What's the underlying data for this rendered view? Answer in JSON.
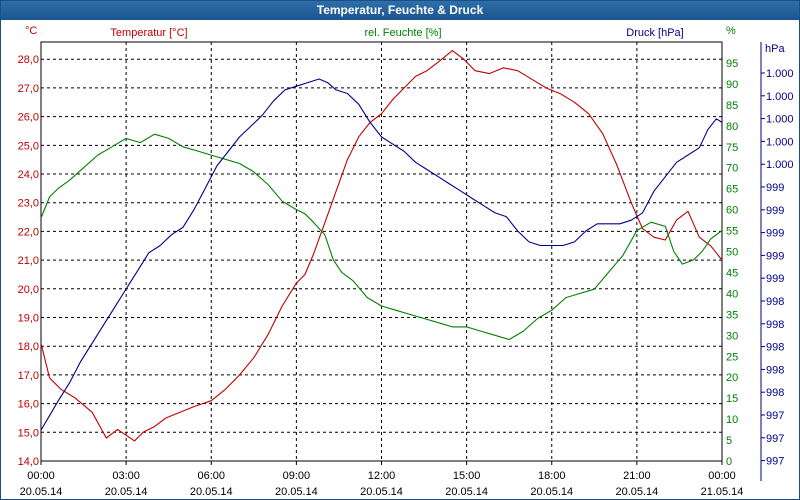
{
  "window": {
    "title": "Temperatur, Feuchte & Druck"
  },
  "chart_data": {
    "type": "line",
    "title": "Temperatur, Feuchte & Druck",
    "grid": true,
    "x_tick_labels": [
      [
        "00:00",
        "20.05.14"
      ],
      [
        "03:00",
        "20.05.14"
      ],
      [
        "06:00",
        "20.05.14"
      ],
      [
        "09:00",
        "20.05.14"
      ],
      [
        "12:00",
        "20.05.14"
      ],
      [
        "15:00",
        "20.05.14"
      ],
      [
        "18:00",
        "20.05.14"
      ],
      [
        "21:00",
        "20.05.14"
      ],
      [
        "00:00",
        "21.05.14"
      ]
    ],
    "xlim": [
      0,
      24
    ],
    "axes": {
      "temperature": {
        "label": "Temperatur [°C]",
        "unit": "°C",
        "color": "#c00000",
        "ylim": [
          14.0,
          28.6
        ],
        "ticks": [
          "14,0",
          "15,0",
          "16,0",
          "17,0",
          "18,0",
          "19,0",
          "20,0",
          "21,0",
          "22,0",
          "23,0",
          "24,0",
          "25,0",
          "26,0",
          "27,0",
          "28,0"
        ]
      },
      "humidity": {
        "label": "rel. Feuchte [%]",
        "unit": "%",
        "color": "#008000",
        "ylim": [
          0,
          100
        ],
        "ticks": [
          "0",
          "5",
          "10",
          "15",
          "20",
          "25",
          "30",
          "35",
          "40",
          "45",
          "50",
          "55",
          "60",
          "65",
          "70",
          "75",
          "80",
          "85",
          "90",
          "95"
        ]
      },
      "pressure": {
        "label": "Druck [hPa]",
        "unit": "hPa",
        "color": "#00008b",
        "ticks": [
          "997",
          "997",
          "997",
          "998",
          "998",
          "998",
          "998",
          "998",
          "999",
          "999",
          "999",
          "999",
          "999",
          "1.000",
          "1.000",
          "1.000",
          "1.000",
          "1.000"
        ]
      }
    },
    "series": [
      {
        "name": "Temperatur",
        "axis": "temperature",
        "color": "#c00000",
        "x": [
          0,
          0.3,
          0.7,
          1.2,
          1.8,
          2.3,
          2.7,
          3.0,
          3.3,
          3.6,
          4.0,
          4.4,
          4.9,
          5.4,
          6.0,
          6.5,
          7.0,
          7.5,
          8.0,
          8.5,
          9.0,
          9.3,
          9.6,
          10.0,
          10.4,
          10.8,
          11.2,
          11.6,
          12.0,
          12.4,
          12.8,
          13.2,
          13.6,
          14.0,
          14.5,
          14.9,
          15.3,
          15.8,
          16.3,
          16.8,
          17.3,
          17.8,
          18.3,
          18.8,
          19.3,
          19.8,
          20.3,
          20.8,
          21.2,
          21.6,
          22.0,
          22.4,
          22.8,
          23.2,
          23.6,
          24.0
        ],
        "y": [
          18.1,
          16.9,
          16.5,
          16.2,
          15.7,
          14.8,
          15.1,
          14.9,
          14.7,
          15.0,
          15.2,
          15.5,
          15.7,
          15.9,
          16.1,
          16.5,
          17.0,
          17.6,
          18.4,
          19.4,
          20.2,
          20.5,
          21.2,
          22.3,
          23.4,
          24.5,
          25.3,
          25.8,
          26.1,
          26.6,
          27.0,
          27.4,
          27.6,
          27.9,
          28.3,
          28.0,
          27.6,
          27.5,
          27.7,
          27.6,
          27.3,
          27.0,
          26.8,
          26.5,
          26.1,
          25.4,
          24.3,
          23.0,
          22.1,
          21.8,
          21.7,
          22.4,
          22.7,
          21.8,
          21.5,
          21.0
        ]
      },
      {
        "name": "rel. Feuchte",
        "axis": "humidity",
        "color": "#008000",
        "x": [
          0,
          0.3,
          0.6,
          1.0,
          1.5,
          2.0,
          2.5,
          3.0,
          3.5,
          4.0,
          4.5,
          5.0,
          5.5,
          6.0,
          6.5,
          7.0,
          7.5,
          8.0,
          8.5,
          9.0,
          9.3,
          9.6,
          10.0,
          10.3,
          10.6,
          11.0,
          11.5,
          12.0,
          12.5,
          13.0,
          13.5,
          14.0,
          14.5,
          15.0,
          15.5,
          16.0,
          16.5,
          17.0,
          17.5,
          18.0,
          18.5,
          19.0,
          19.5,
          20.0,
          20.5,
          21.0,
          21.5,
          22.0,
          22.3,
          22.6,
          23.0,
          23.3,
          23.6,
          24.0
        ],
        "y": [
          58,
          63,
          65,
          67,
          70,
          73,
          75,
          77,
          76,
          78,
          77,
          75,
          74,
          73,
          72,
          71,
          69,
          66,
          62,
          60,
          59,
          57,
          54,
          48,
          45,
          43,
          39,
          37,
          36,
          35,
          34,
          33,
          32,
          32,
          31,
          30,
          29,
          31,
          34,
          36,
          39,
          40,
          41,
          45,
          49,
          55,
          57,
          56,
          50,
          47,
          48,
          50,
          53,
          55
        ]
      },
      {
        "name": "Druck",
        "axis": "pressure",
        "color": "#00008b",
        "x": [
          0,
          0.3,
          0.6,
          1.0,
          1.4,
          1.8,
          2.2,
          2.6,
          3.0,
          3.4,
          3.8,
          4.2,
          4.6,
          5.0,
          5.4,
          5.8,
          6.2,
          6.6,
          7.0,
          7.4,
          7.8,
          8.2,
          8.6,
          9.0,
          9.4,
          9.8,
          10.1,
          10.4,
          10.8,
          11.2,
          11.6,
          12.0,
          12.4,
          12.8,
          13.2,
          13.6,
          14.0,
          14.4,
          14.8,
          15.2,
          15.6,
          16.0,
          16.4,
          16.8,
          17.2,
          17.6,
          18.0,
          18.4,
          18.8,
          19.2,
          19.6,
          20.0,
          20.4,
          20.8,
          21.2,
          21.6,
          22.0,
          22.4,
          22.8,
          23.2,
          23.5,
          23.8,
          24.0
        ],
        "y_rel": [
          3,
          7,
          11,
          16,
          22,
          27,
          32,
          37,
          42,
          47,
          52,
          54,
          57,
          59,
          64,
          70,
          76,
          80,
          84,
          87,
          90,
          94,
          97,
          98,
          99,
          100,
          99,
          97,
          96,
          93,
          88,
          84,
          82,
          80,
          77,
          75,
          73,
          71,
          69,
          67,
          65,
          63,
          62,
          58,
          55,
          54,
          54,
          54,
          55,
          58,
          60,
          60,
          60,
          61,
          63,
          69,
          73,
          77,
          79,
          81,
          86,
          89,
          88
        ]
      }
    ]
  }
}
